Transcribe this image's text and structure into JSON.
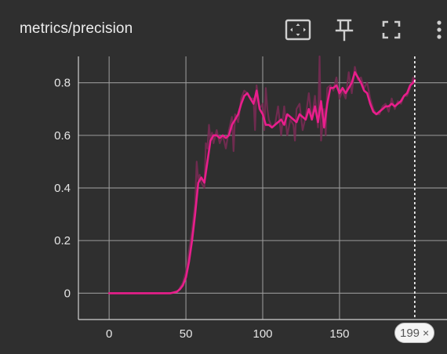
{
  "card": {
    "title": "metrics/precision"
  },
  "toolbar": {
    "icons": [
      "fit-domain-icon",
      "pin-icon",
      "fullscreen-icon",
      "more-vert-icon"
    ]
  },
  "step_badge": {
    "value": "199",
    "close": "×"
  },
  "colors": {
    "background": "#2f2f2f",
    "grid": "#9e9e9e",
    "smoothed": "#e91e8c",
    "raw": "#7a2a55"
  },
  "chart_data": {
    "type": "line",
    "title": "metrics/precision",
    "xlabel": "",
    "ylabel": "",
    "xlim": [
      -20,
      220
    ],
    "ylim": [
      -0.1,
      0.9
    ],
    "xticks": [
      0,
      50,
      100,
      150
    ],
    "yticks": [
      0,
      0.2,
      0.4,
      0.6,
      0.8
    ],
    "xtick_labels": [
      "0",
      "50",
      "100",
      "150"
    ],
    "ytick_labels": [
      "0",
      "0.2",
      "0.4",
      "0.6",
      "0.8"
    ],
    "grid": true,
    "cursor_step": 199,
    "series": [
      {
        "role": "raw",
        "x": [
          0,
          10,
          20,
          30,
          40,
          45,
          48,
          50,
          52,
          54,
          56,
          57,
          58,
          59,
          60,
          62,
          63,
          64,
          65,
          66,
          67,
          68,
          70,
          72,
          74,
          76,
          78,
          80,
          81,
          82,
          84,
          86,
          88,
          90,
          92,
          94,
          95,
          96,
          98,
          100,
          101,
          102,
          103,
          104,
          106,
          108,
          110,
          112,
          114,
          116,
          118,
          120,
          121,
          122,
          124,
          126,
          128,
          130,
          132,
          134,
          136,
          137,
          138,
          140,
          141,
          142,
          144,
          146,
          148,
          150,
          152,
          154,
          156,
          158,
          160,
          162,
          164,
          166,
          168,
          170,
          172,
          174,
          176,
          178,
          180,
          182,
          184,
          186,
          188,
          190,
          192,
          194,
          196,
          198,
          199
        ],
        "y": [
          0.0,
          0.0,
          0.0,
          0.0,
          0.0,
          0.01,
          0.04,
          0.08,
          0.16,
          0.24,
          0.34,
          0.5,
          0.43,
          0.45,
          0.42,
          0.4,
          0.57,
          0.55,
          0.64,
          0.58,
          0.61,
          0.57,
          0.62,
          0.57,
          0.6,
          0.55,
          0.62,
          0.67,
          0.54,
          0.68,
          0.65,
          0.74,
          0.77,
          0.76,
          0.74,
          0.74,
          0.62,
          0.79,
          0.7,
          0.72,
          0.62,
          0.78,
          0.7,
          0.66,
          0.63,
          0.64,
          0.71,
          0.6,
          0.71,
          0.6,
          0.66,
          0.64,
          0.58,
          0.7,
          0.72,
          0.62,
          0.67,
          0.76,
          0.66,
          0.75,
          0.63,
          0.9,
          0.58,
          0.7,
          0.6,
          0.78,
          0.79,
          0.77,
          0.82,
          0.74,
          0.77,
          0.74,
          0.84,
          0.76,
          0.86,
          0.81,
          0.82,
          0.78,
          0.8,
          0.74,
          0.7,
          0.68,
          0.68,
          0.71,
          0.72,
          0.69,
          0.74,
          0.7,
          0.73,
          0.72,
          0.75,
          0.75,
          0.78,
          0.82,
          0.81
        ]
      },
      {
        "role": "smoothed",
        "x": [
          0,
          10,
          20,
          30,
          40,
          44,
          46,
          48,
          50,
          52,
          54,
          56,
          57,
          58,
          60,
          62,
          64,
          66,
          68,
          70,
          72,
          74,
          76,
          78,
          80,
          82,
          84,
          86,
          88,
          90,
          92,
          94,
          96,
          98,
          100,
          102,
          104,
          106,
          108,
          110,
          112,
          114,
          116,
          118,
          120,
          122,
          124,
          126,
          128,
          130,
          132,
          134,
          136,
          138,
          140,
          142,
          144,
          146,
          148,
          150,
          152,
          154,
          156,
          158,
          160,
          162,
          164,
          166,
          168,
          170,
          172,
          174,
          176,
          178,
          180,
          182,
          184,
          186,
          188,
          190,
          192,
          194,
          196,
          198,
          199
        ],
        "y": [
          0.0,
          0.0,
          0.0,
          0.0,
          0.0,
          0.005,
          0.015,
          0.03,
          0.06,
          0.12,
          0.2,
          0.3,
          0.36,
          0.42,
          0.44,
          0.42,
          0.5,
          0.58,
          0.6,
          0.6,
          0.59,
          0.6,
          0.59,
          0.6,
          0.64,
          0.66,
          0.68,
          0.72,
          0.75,
          0.76,
          0.74,
          0.72,
          0.77,
          0.7,
          0.68,
          0.64,
          0.64,
          0.63,
          0.64,
          0.65,
          0.66,
          0.64,
          0.68,
          0.67,
          0.66,
          0.65,
          0.68,
          0.67,
          0.66,
          0.7,
          0.66,
          0.71,
          0.65,
          0.73,
          0.63,
          0.72,
          0.78,
          0.78,
          0.79,
          0.76,
          0.78,
          0.76,
          0.78,
          0.8,
          0.84,
          0.82,
          0.8,
          0.77,
          0.76,
          0.72,
          0.69,
          0.68,
          0.69,
          0.7,
          0.71,
          0.71,
          0.72,
          0.71,
          0.72,
          0.73,
          0.75,
          0.76,
          0.79,
          0.8,
          0.81
        ]
      }
    ]
  }
}
